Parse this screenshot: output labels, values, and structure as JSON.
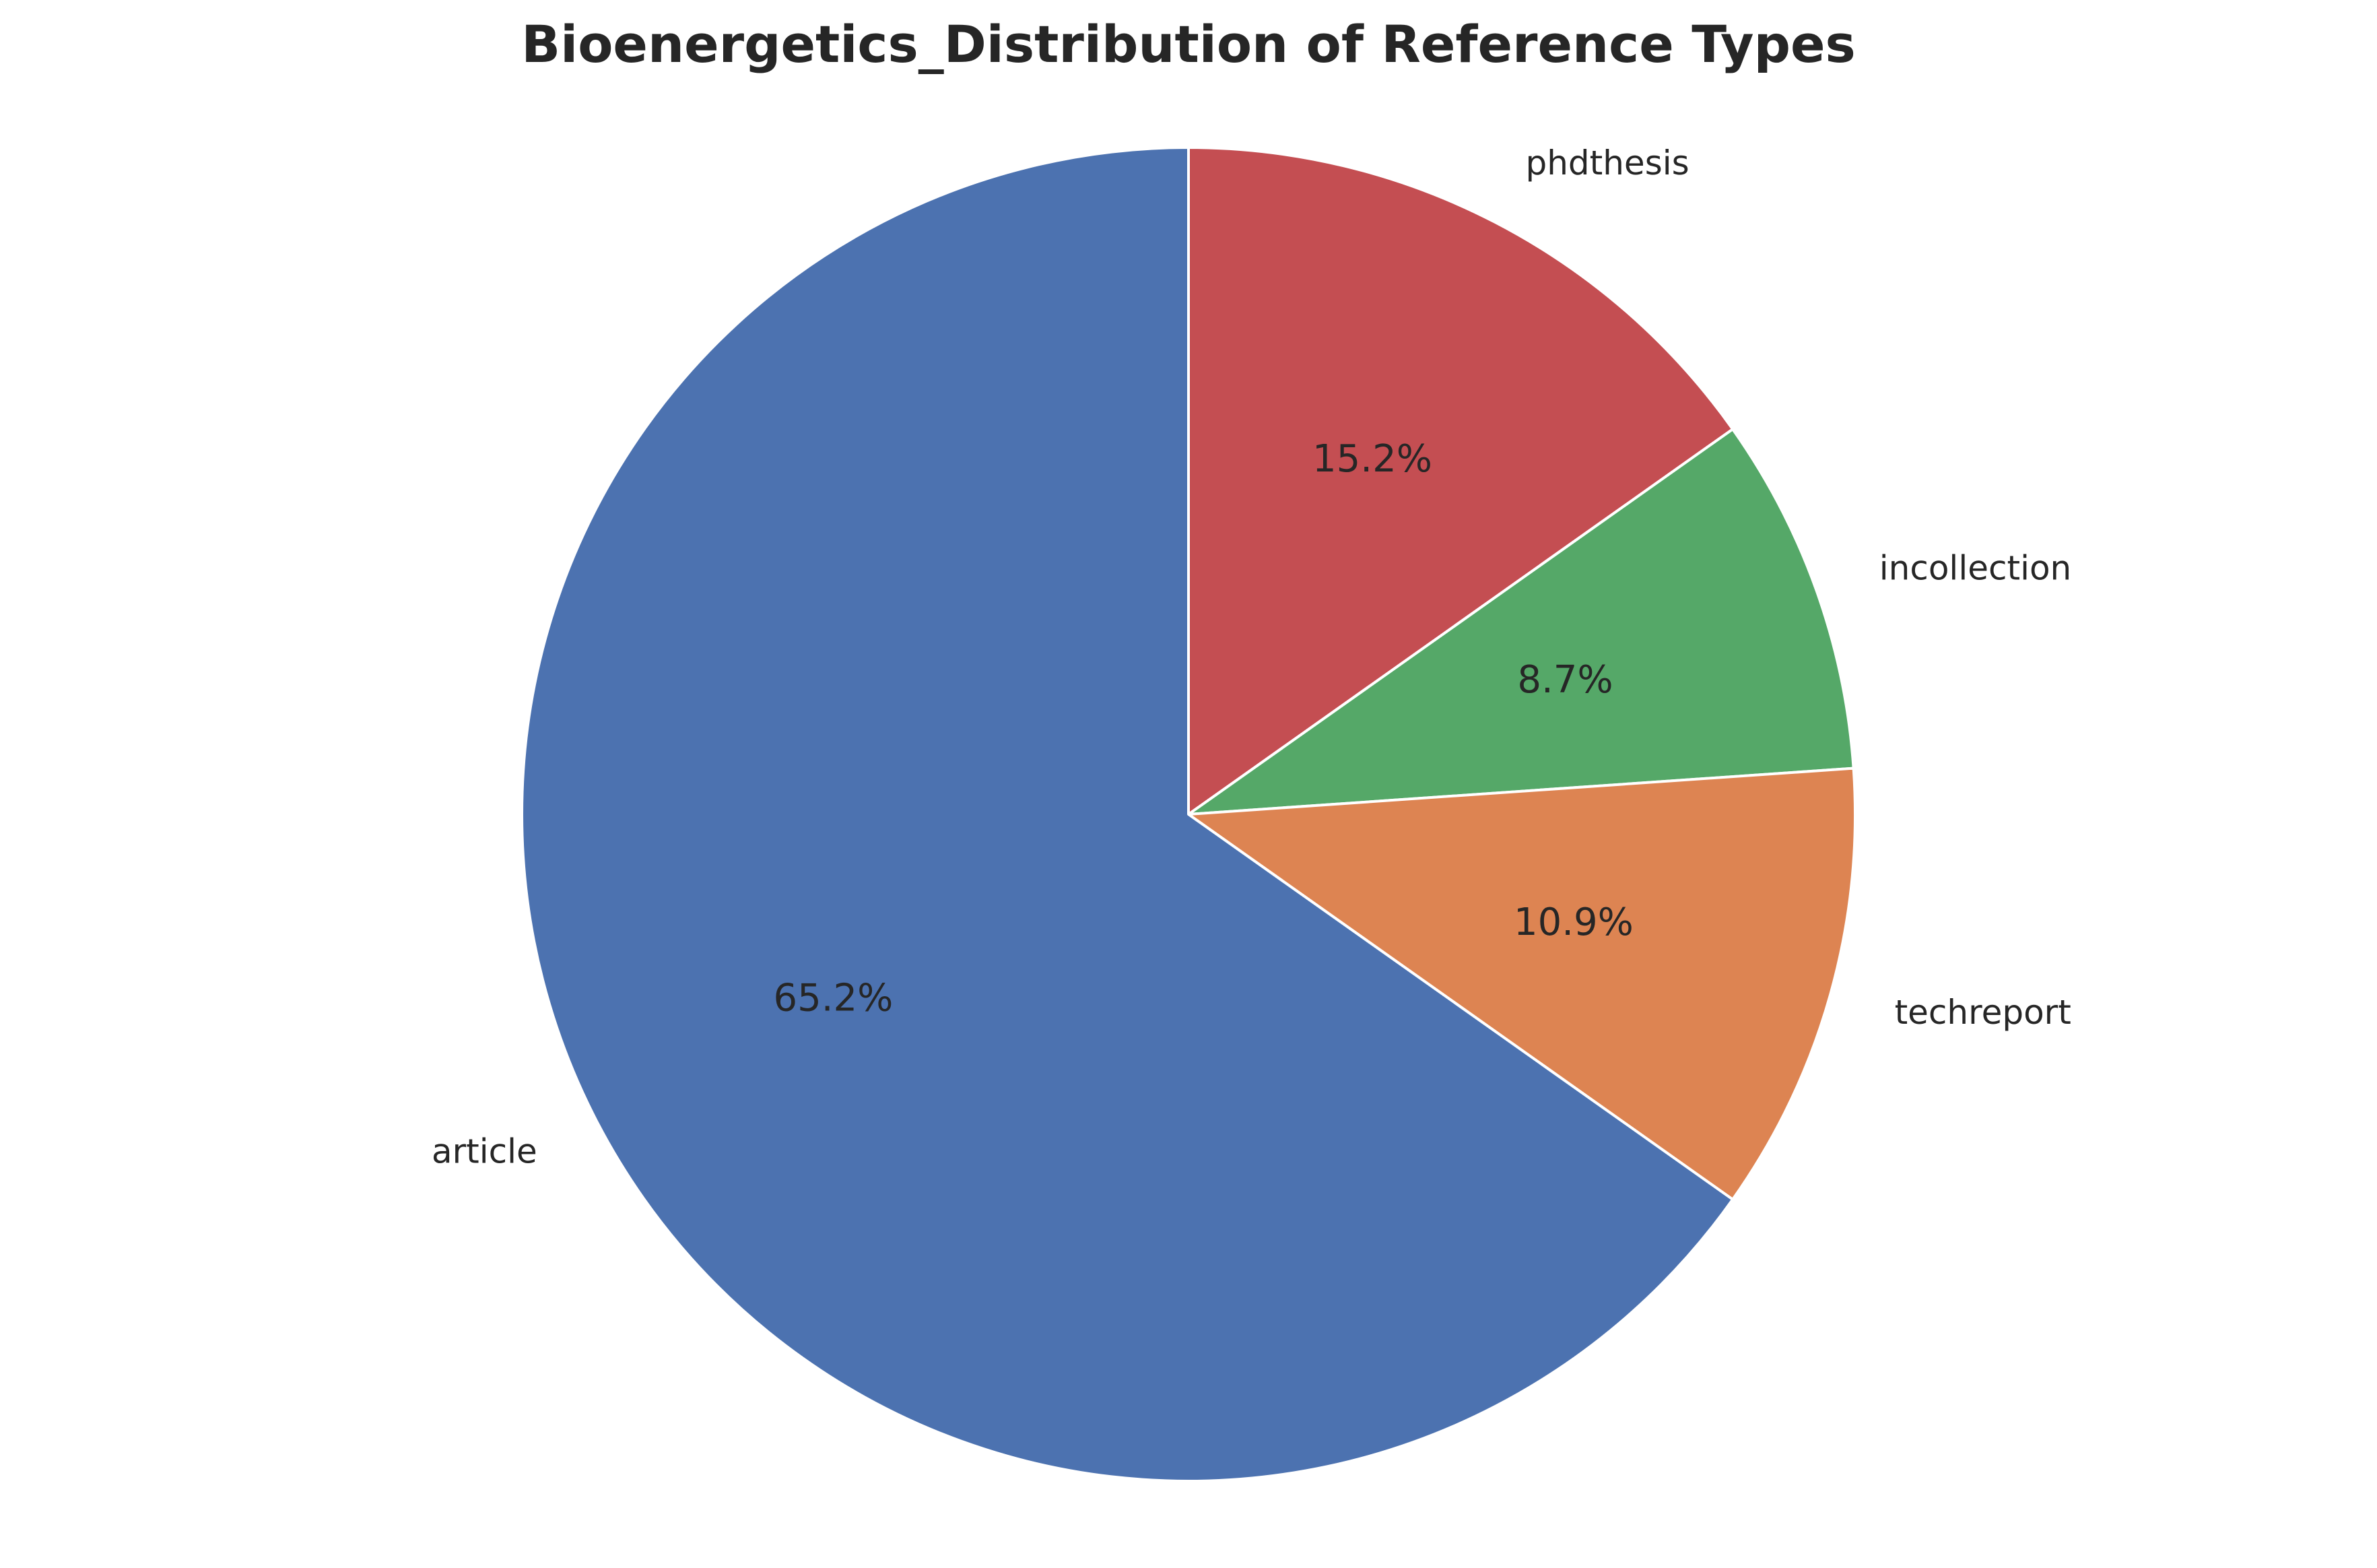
{
  "chart_data": {
    "type": "pie",
    "title": "Bioenergetics_Distribution of Reference Types",
    "start_angle_deg": 90,
    "direction": "clockwise",
    "slices": [
      {
        "label": "phdthesis",
        "value": 15.2,
        "pct_label": "15.2%",
        "color": "#c44e52"
      },
      {
        "label": "incollection",
        "value": 8.7,
        "pct_label": "8.7%",
        "color": "#55a868"
      },
      {
        "label": "techreport",
        "value": 10.9,
        "pct_label": "10.9%",
        "color": "#dd8452"
      },
      {
        "label": "article",
        "value": 65.2,
        "pct_label": "65.2%",
        "color": "#4c72b0"
      }
    ]
  }
}
